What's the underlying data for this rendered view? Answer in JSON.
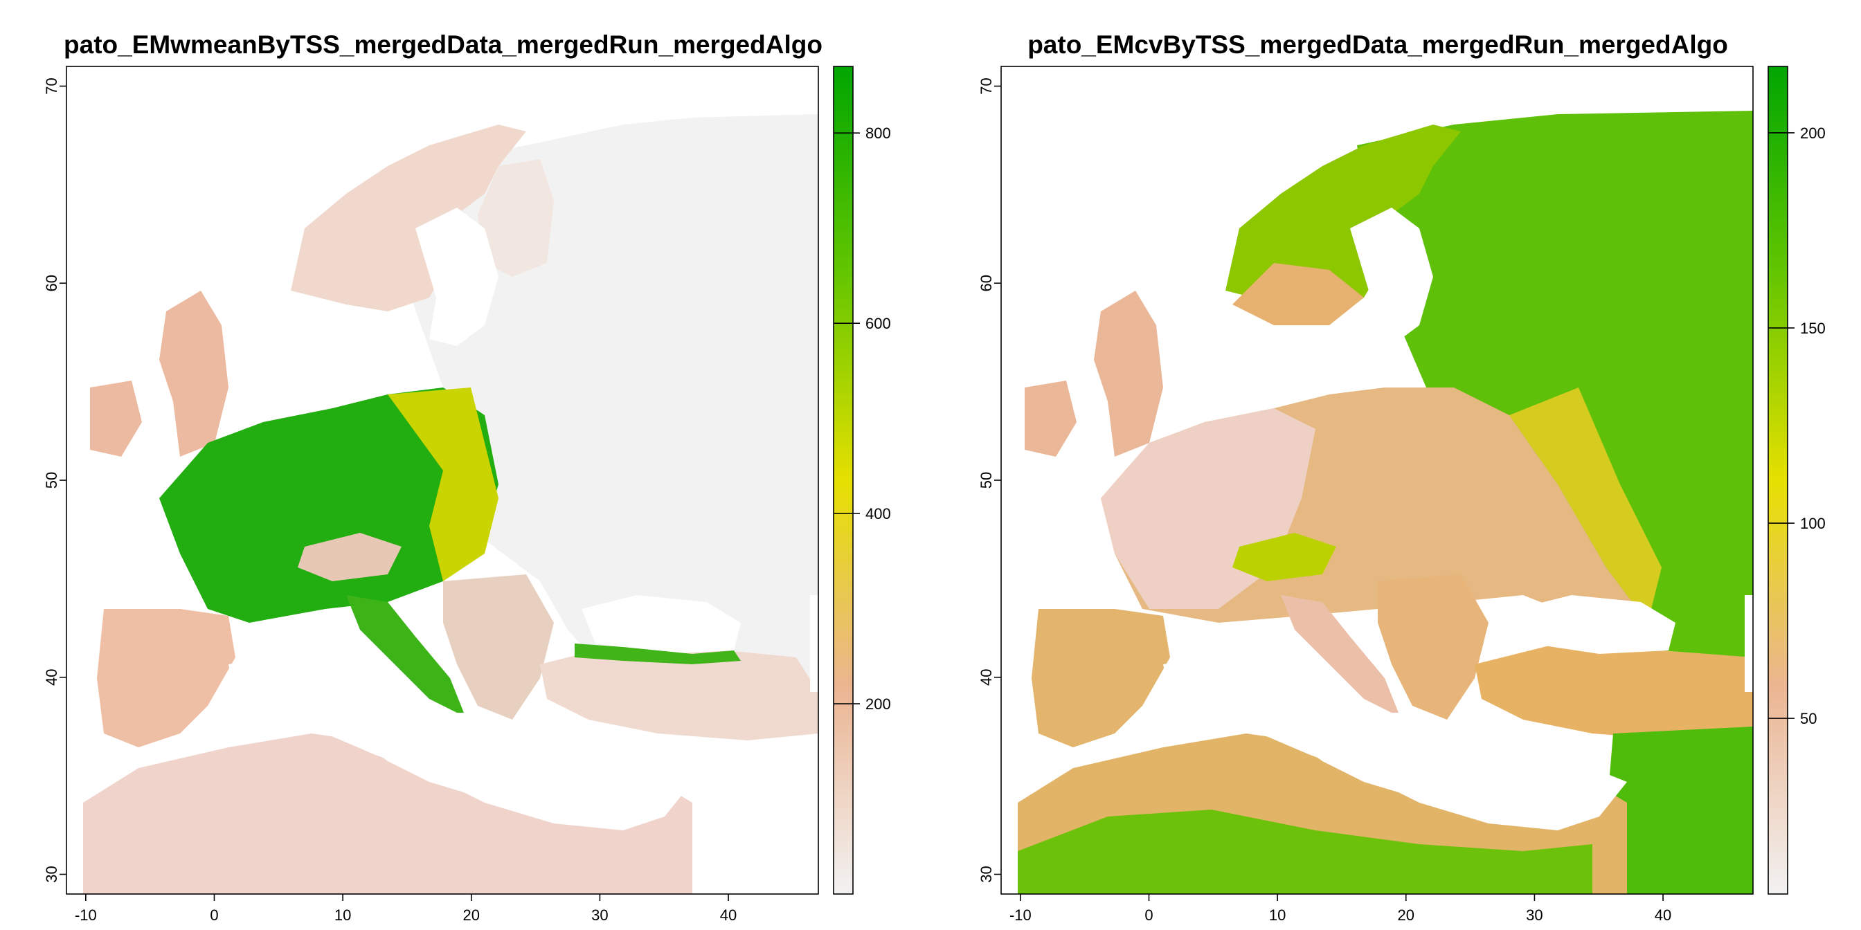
{
  "panels": [
    {
      "title": "pato_EMwmeanByTSS_mergedData_mergedRun_mergedAlgo",
      "x_ticks": [
        "-10",
        "0",
        "10",
        "20",
        "30",
        "40"
      ],
      "y_ticks": [
        "30",
        "40",
        "50",
        "60",
        "70"
      ],
      "legend_ticks": [
        "200",
        "400",
        "600",
        "800"
      ],
      "legend_range": [
        0,
        870
      ],
      "colors": {
        "low": "#f2f2f2",
        "mid_low": "#ebb592",
        "mid": "#e6e000",
        "high": "#00a600"
      }
    },
    {
      "title": "pato_EMcvByTSS_mergedData_mergedRun_mergedAlgo",
      "x_ticks": [
        "-10",
        "0",
        "10",
        "20",
        "30",
        "40"
      ],
      "y_ticks": [
        "30",
        "40",
        "50",
        "60",
        "70"
      ],
      "legend_ticks": [
        "50",
        "100",
        "150",
        "200"
      ],
      "legend_range": [
        5,
        217
      ],
      "colors": {
        "low": "#f2f2f2",
        "mid_low": "#ebb592",
        "mid": "#e6e000",
        "high": "#00a600"
      }
    }
  ]
}
